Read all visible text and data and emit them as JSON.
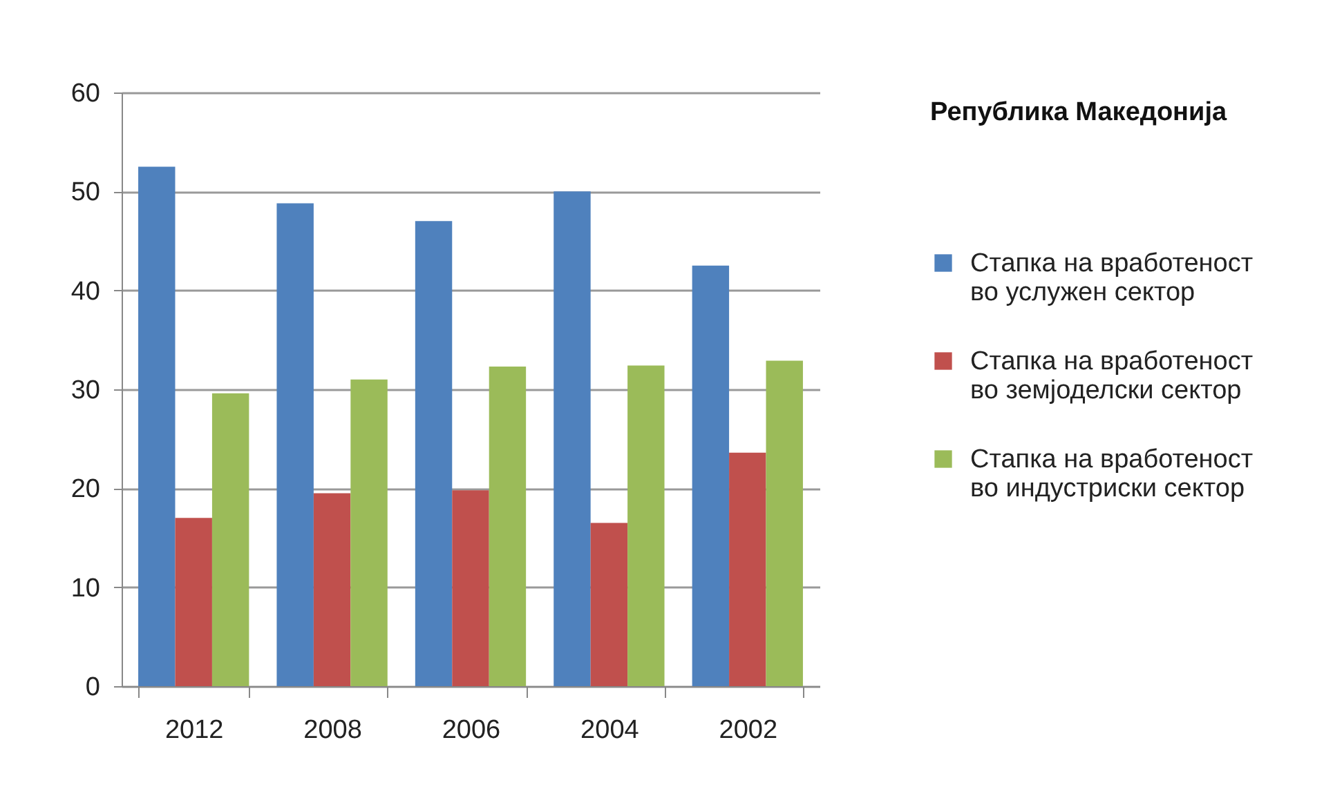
{
  "chart_data": {
    "type": "bar",
    "legend_title": "Република Македонија",
    "categories": [
      "2012",
      "2008",
      "2006",
      "2004",
      "2002"
    ],
    "series": [
      {
        "name": "Стапка на вработеност во услужен сектор",
        "color": "#4f81bd",
        "values": [
          52.5,
          48.8,
          47.0,
          50.0,
          42.5
        ]
      },
      {
        "name": "Стапка на вработеност во земјоделски сектор",
        "color": "#c0504d",
        "values": [
          17.0,
          19.5,
          19.8,
          16.5,
          23.6
        ]
      },
      {
        "name": "Стапка на вработеност во индустриски сектор",
        "color": "#9bbb59",
        "values": [
          29.6,
          31.0,
          32.3,
          32.4,
          32.9
        ]
      }
    ],
    "ylim": [
      0,
      60
    ],
    "yticks": [
      0,
      10,
      20,
      30,
      40,
      50,
      60
    ],
    "grid": "y",
    "legend": "right"
  }
}
